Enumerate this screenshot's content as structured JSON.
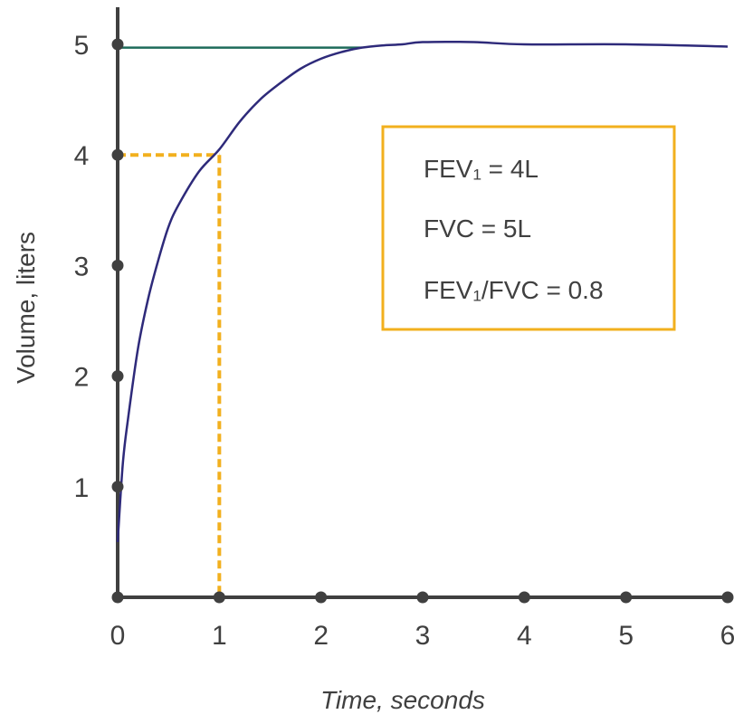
{
  "chart_data": {
    "type": "line",
    "xlabel": "Time, seconds",
    "ylabel": "Volume, liters",
    "xlim": [
      0,
      6
    ],
    "ylim": [
      0,
      5.2
    ],
    "x_ticks": [
      "0",
      "1",
      "2",
      "3",
      "4",
      "5",
      "6"
    ],
    "y_ticks": [
      "1",
      "2",
      "3",
      "4",
      "5"
    ],
    "x_tick_values": [
      0,
      1,
      2,
      3,
      4,
      5,
      6
    ],
    "y_tick_values": [
      1,
      2,
      3,
      4,
      5
    ],
    "series": [
      {
        "color": "#2e2a7a",
        "x": [
          0,
          0.05,
          0.1,
          0.2,
          0.3,
          0.4,
          0.5,
          0.6,
          0.8,
          1.0,
          1.2,
          1.4,
          1.6,
          1.8,
          2.0,
          2.2,
          2.4,
          2.6,
          2.8,
          3.0,
          3.5,
          4.0,
          5.0,
          6.0
        ],
        "y": [
          0.5,
          1.2,
          1.6,
          2.25,
          2.7,
          3.05,
          3.35,
          3.55,
          3.85,
          4.05,
          4.3,
          4.5,
          4.65,
          4.78,
          4.87,
          4.93,
          4.97,
          4.99,
          5.0,
          5.02,
          5.02,
          5.0,
          5.0,
          4.98
        ]
      }
    ],
    "reference_lines": {
      "fvc_line": {
        "y": 4.97,
        "x_end": 2.4,
        "color": "#1e6b5a"
      },
      "fev1_lines": {
        "x": 1,
        "y": 4,
        "color": "#f2b01e",
        "style": "dashed"
      }
    },
    "annotation_box": {
      "lines": [
        "FEV₁ = 4L",
        "FVC = 5L",
        "FEV₁/FVC = 0.8"
      ],
      "border_color": "#f2b01e"
    },
    "colors": {
      "axis": "#404040",
      "curve": "#2e2a7a",
      "fvc": "#1e6b5a",
      "fev1": "#f2b01e"
    }
  }
}
